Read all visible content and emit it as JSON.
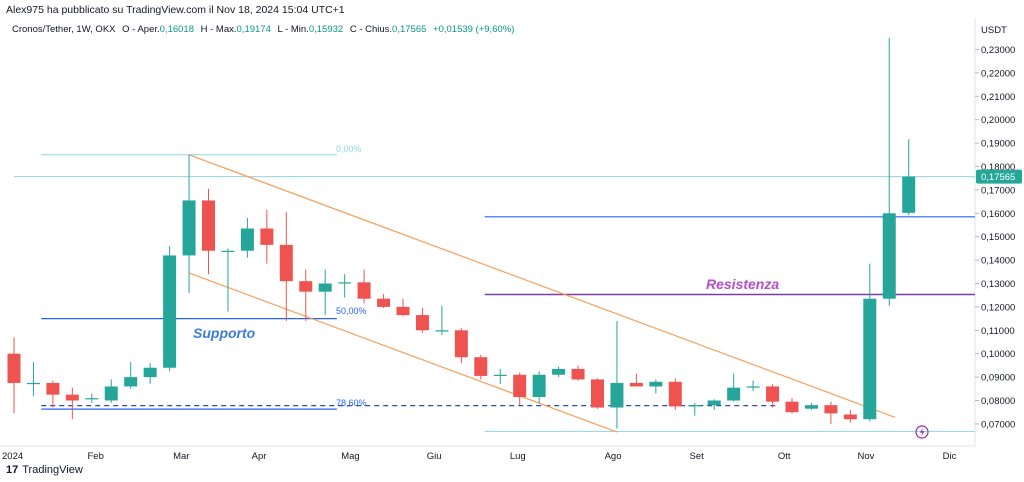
{
  "header": {
    "attribution": "Alex975 ha pubblicato su TradingView.com il Nov 18, 2024 15:04 UTC+1",
    "symbol": "Cronos/Tether, 1W, OKX",
    "open_label": "O - Aper.",
    "open_value": "0,16018",
    "high_label": "H - Max.",
    "high_value": "0,19174",
    "low_label": "L - Min.",
    "low_value": "0,15932",
    "close_label": "C - Chius.",
    "close_value": "0,17565",
    "change": "+0,01539 (+9,60%)"
  },
  "brand": {
    "name": "TradingView",
    "logo_glyph": "17"
  },
  "colors": {
    "up": "#26a69a",
    "down": "#ef5350",
    "support": "#2962ff",
    "resistance": "#7b3fa0",
    "channel": "#f5a05a",
    "price_tag": "#26a69a"
  },
  "chart_data": {
    "type": "candlestick",
    "title": "Cronos/Tether, 1W, OKX",
    "ylabel": "USDT",
    "ylim": [
      0.066,
      0.238
    ],
    "yticks": [
      "0,23000",
      "0,22000",
      "0,21000",
      "0,20000",
      "0,19000",
      "0,18000",
      "0,17000",
      "0,16000",
      "0,15000",
      "0,14000",
      "0,13000",
      "0,12000",
      "0,11000",
      "0,10000",
      "0,09000",
      "0,08000",
      "0,07000"
    ],
    "xticks": [
      {
        "label": "2024",
        "index": -0.4
      },
      {
        "label": "Feb",
        "index": 4.2
      },
      {
        "label": "Mar",
        "index": 8.6
      },
      {
        "label": "Apr",
        "index": 12.6
      },
      {
        "label": "Mag",
        "index": 17.3
      },
      {
        "label": "Giu",
        "index": 21.6
      },
      {
        "label": "Lug",
        "index": 25.9
      },
      {
        "label": "Ago",
        "index": 30.8
      },
      {
        "label": "Set",
        "index": 35.1
      },
      {
        "label": "Ott",
        "index": 39.6
      },
      {
        "label": "Nov",
        "index": 43.8
      },
      {
        "label": "Dic",
        "index": 48.1
      }
    ],
    "candles": [
      {
        "o": 0.1,
        "h": 0.107,
        "l": 0.0745,
        "c": 0.0875
      },
      {
        "o": 0.0875,
        "h": 0.0965,
        "l": 0.082,
        "c": 0.0875
      },
      {
        "o": 0.0875,
        "h": 0.0885,
        "l": 0.077,
        "c": 0.0825
      },
      {
        "o": 0.0825,
        "h": 0.0855,
        "l": 0.072,
        "c": 0.08
      },
      {
        "o": 0.0805,
        "h": 0.083,
        "l": 0.079,
        "c": 0.081
      },
      {
        "o": 0.08,
        "h": 0.089,
        "l": 0.079,
        "c": 0.086
      },
      {
        "o": 0.086,
        "h": 0.0965,
        "l": 0.085,
        "c": 0.09
      },
      {
        "o": 0.09,
        "h": 0.096,
        "l": 0.087,
        "c": 0.094
      },
      {
        "o": 0.094,
        "h": 0.146,
        "l": 0.0925,
        "c": 0.142
      },
      {
        "o": 0.142,
        "h": 0.185,
        "l": 0.126,
        "c": 0.1655
      },
      {
        "o": 0.1655,
        "h": 0.1705,
        "l": 0.134,
        "c": 0.144
      },
      {
        "o": 0.144,
        "h": 0.145,
        "l": 0.118,
        "c": 0.144
      },
      {
        "o": 0.144,
        "h": 0.158,
        "l": 0.141,
        "c": 0.1535
      },
      {
        "o": 0.1535,
        "h": 0.1615,
        "l": 0.1385,
        "c": 0.1465
      },
      {
        "o": 0.1465,
        "h": 0.1605,
        "l": 0.114,
        "c": 0.131
      },
      {
        "o": 0.131,
        "h": 0.136,
        "l": 0.114,
        "c": 0.1265
      },
      {
        "o": 0.1265,
        "h": 0.136,
        "l": 0.1165,
        "c": 0.13
      },
      {
        "o": 0.13,
        "h": 0.134,
        "l": 0.124,
        "c": 0.1305
      },
      {
        "o": 0.1305,
        "h": 0.136,
        "l": 0.1215,
        "c": 0.1235
      },
      {
        "o": 0.1235,
        "h": 0.1255,
        "l": 0.1195,
        "c": 0.12
      },
      {
        "o": 0.12,
        "h": 0.1235,
        "l": 0.116,
        "c": 0.1165
      },
      {
        "o": 0.1165,
        "h": 0.1195,
        "l": 0.109,
        "c": 0.11
      },
      {
        "o": 0.11,
        "h": 0.1205,
        "l": 0.108,
        "c": 0.11
      },
      {
        "o": 0.11,
        "h": 0.111,
        "l": 0.096,
        "c": 0.0985
      },
      {
        "o": 0.0985,
        "h": 0.0995,
        "l": 0.089,
        "c": 0.0905
      },
      {
        "o": 0.0905,
        "h": 0.0935,
        "l": 0.087,
        "c": 0.091
      },
      {
        "o": 0.091,
        "h": 0.092,
        "l": 0.078,
        "c": 0.0815
      },
      {
        "o": 0.0815,
        "h": 0.0925,
        "l": 0.079,
        "c": 0.091
      },
      {
        "o": 0.091,
        "h": 0.0945,
        "l": 0.09,
        "c": 0.0935
      },
      {
        "o": 0.0935,
        "h": 0.095,
        "l": 0.0885,
        "c": 0.089
      },
      {
        "o": 0.089,
        "h": 0.0895,
        "l": 0.0765,
        "c": 0.077
      },
      {
        "o": 0.077,
        "h": 0.114,
        "l": 0.068,
        "c": 0.0875
      },
      {
        "o": 0.0875,
        "h": 0.0915,
        "l": 0.0865,
        "c": 0.086
      },
      {
        "o": 0.086,
        "h": 0.089,
        "l": 0.083,
        "c": 0.088
      },
      {
        "o": 0.088,
        "h": 0.0895,
        "l": 0.076,
        "c": 0.0775
      },
      {
        "o": 0.0775,
        "h": 0.079,
        "l": 0.0735,
        "c": 0.078
      },
      {
        "o": 0.078,
        "h": 0.0805,
        "l": 0.076,
        "c": 0.08
      },
      {
        "o": 0.08,
        "h": 0.0915,
        "l": 0.0795,
        "c": 0.0855
      },
      {
        "o": 0.0855,
        "h": 0.0885,
        "l": 0.084,
        "c": 0.086
      },
      {
        "o": 0.086,
        "h": 0.087,
        "l": 0.077,
        "c": 0.0795
      },
      {
        "o": 0.0795,
        "h": 0.081,
        "l": 0.0745,
        "c": 0.075
      },
      {
        "o": 0.0765,
        "h": 0.079,
        "l": 0.076,
        "c": 0.078
      },
      {
        "o": 0.078,
        "h": 0.0795,
        "l": 0.07,
        "c": 0.0745
      },
      {
        "o": 0.074,
        "h": 0.076,
        "l": 0.0705,
        "c": 0.072
      },
      {
        "o": 0.072,
        "h": 0.1385,
        "l": 0.071,
        "c": 0.1235
      },
      {
        "o": 0.1235,
        "h": 0.235,
        "l": 0.1205,
        "c": 0.16
      },
      {
        "o": 0.1602,
        "h": 0.1917,
        "l": 0.1593,
        "c": 0.1757
      }
    ],
    "last_price": "0,17565",
    "annotations": {
      "support_label": "Supporto",
      "resistance_label": "Resistenza",
      "fib_0": "0,00%",
      "fib_50": "50,00%",
      "fib_786": "78,60%"
    },
    "levels": {
      "support": {
        "value": 0.115,
        "from": 1.4,
        "to": 16.6
      },
      "resistance": {
        "value": 0.1253,
        "from": 24.2,
        "to": 50.5
      },
      "resistance_upper": {
        "value": 0.1585,
        "from": 24.2,
        "to": 50.5
      },
      "fib_0": {
        "value": 0.185,
        "from": 1.4,
        "to": 16.6
      },
      "fib_786": {
        "value": 0.0763,
        "from": 1.4,
        "to": 16.6
      },
      "low_line": {
        "value": 0.0668,
        "from": 24.2,
        "to": 50.5
      },
      "fib_786_ext": {
        "value": 0.0778,
        "from": 1.4,
        "to": 39.2
      },
      "current_price": {
        "value": 0.17565,
        "from": 0,
        "to": 50.5
      }
    },
    "channel": {
      "upper": [
        {
          "i": 9.0,
          "v": 0.185
        },
        {
          "i": 45.3,
          "v": 0.0728
        }
      ],
      "lower": [
        {
          "i": 9.0,
          "v": 0.1345
        },
        {
          "i": 31.0,
          "v": 0.0665
        }
      ]
    }
  }
}
